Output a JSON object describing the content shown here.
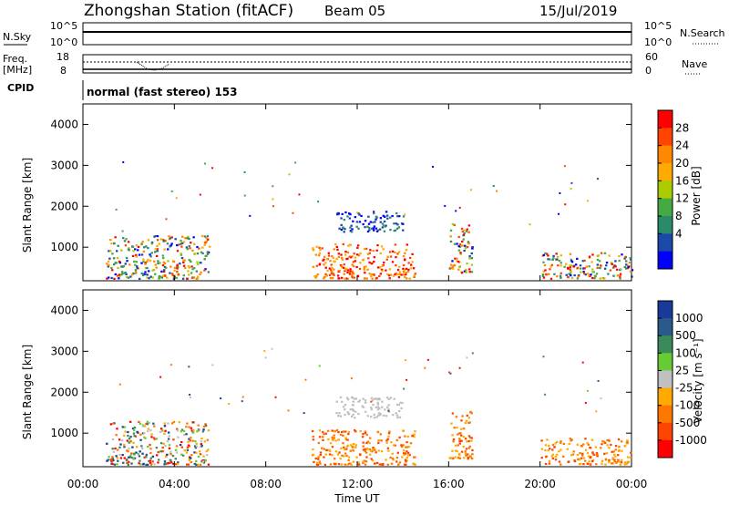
{
  "header": {
    "station": "Zhongshan Station (fitACF)",
    "beam": "Beam 05",
    "date": "15/Jul/2019"
  },
  "top_panel": {
    "left_label": "N.Sky",
    "left_ticks": [
      "10^5",
      "10^0"
    ],
    "right_ticks": [
      "10^5",
      "10^0"
    ],
    "right_label": "N.Search"
  },
  "freq_panel": {
    "left_label_1": "Freq.",
    "left_label_2": "[MHz]",
    "left_ticks": [
      "18",
      "8"
    ],
    "right_ticks": [
      "60",
      "0"
    ],
    "right_label": "Nave"
  },
  "cpid": {
    "label": "CPID",
    "value": "normal (fast stereo) 153"
  },
  "chart_data": [
    {
      "type": "heatmap",
      "parameter": "Power",
      "colorbar_label": "Power [dB]",
      "colorbar_ticks": [
        "28",
        "24",
        "20",
        "16",
        "12",
        "8",
        "4"
      ],
      "colorbar_colors": [
        "#ff0000",
        "#ff4400",
        "#ff8800",
        "#ffaa00",
        "#aacc00",
        "#44aa44",
        "#2a8a6a",
        "#1a4aa8",
        "#0000ff"
      ],
      "ylabel": "Slant Range [km]",
      "yticks": [
        "4000",
        "3000",
        "2000",
        "1000"
      ],
      "ylim": [
        180,
        4500
      ],
      "xlim": [
        0,
        24
      ],
      "xticks": [
        "00:00",
        "04:00",
        "08:00",
        "12:00",
        "16:00",
        "20:00",
        "00:00"
      ],
      "xlabel": "Time UT",
      "scatter_regions": [
        {
          "t0": 1.0,
          "t1": 5.5,
          "r0": 250,
          "r1": 1300,
          "dominant": "mixed"
        },
        {
          "t0": 10.0,
          "t1": 14.5,
          "r0": 250,
          "r1": 1100,
          "dominant": "high"
        },
        {
          "t0": 11.0,
          "t1": 14.0,
          "r0": 1400,
          "r1": 1900,
          "dominant": "low"
        },
        {
          "t0": 16.0,
          "t1": 17.0,
          "r0": 400,
          "r1": 1600,
          "dominant": "mixed"
        },
        {
          "t0": 20.0,
          "t1": 24.0,
          "r0": 250,
          "r1": 900,
          "dominant": "mixed"
        }
      ]
    },
    {
      "type": "heatmap",
      "parameter": "Velocity",
      "colorbar_label": "Velocity [m s⁻¹]",
      "colorbar_ticks": [
        "1000",
        "500",
        "100",
        "25",
        "-25",
        "-100",
        "-500",
        "-1000"
      ],
      "colorbar_colors": [
        "#1a3a9a",
        "#2a5a8a",
        "#3a8a5a",
        "#66cc33",
        "#c0c0c0",
        "#ffaa00",
        "#ff7700",
        "#ff4400",
        "#ff0000"
      ],
      "ylabel": "Slant Range [km]",
      "yticks": [
        "4000",
        "3000",
        "2000",
        "1000"
      ],
      "ylim": [
        180,
        4500
      ],
      "xlim": [
        0,
        24
      ],
      "xticks": [
        "00:00",
        "04:00",
        "08:00",
        "12:00",
        "16:00",
        "20:00",
        "00:00"
      ],
      "xlabel": "Time UT",
      "scatter_regions": [
        {
          "t0": 1.0,
          "t1": 5.5,
          "r0": 250,
          "r1": 1300,
          "dominant": "mixed"
        },
        {
          "t0": 10.0,
          "t1": 14.5,
          "r0": 250,
          "r1": 1100,
          "dominant": "negative"
        },
        {
          "t0": 11.0,
          "t1": 14.0,
          "r0": 1400,
          "r1": 1900,
          "dominant": "near-zero"
        },
        {
          "t0": 16.0,
          "t1": 17.0,
          "r0": 400,
          "r1": 1600,
          "dominant": "negative"
        },
        {
          "t0": 20.0,
          "t1": 24.0,
          "r0": 250,
          "r1": 900,
          "dominant": "negative"
        }
      ]
    }
  ]
}
